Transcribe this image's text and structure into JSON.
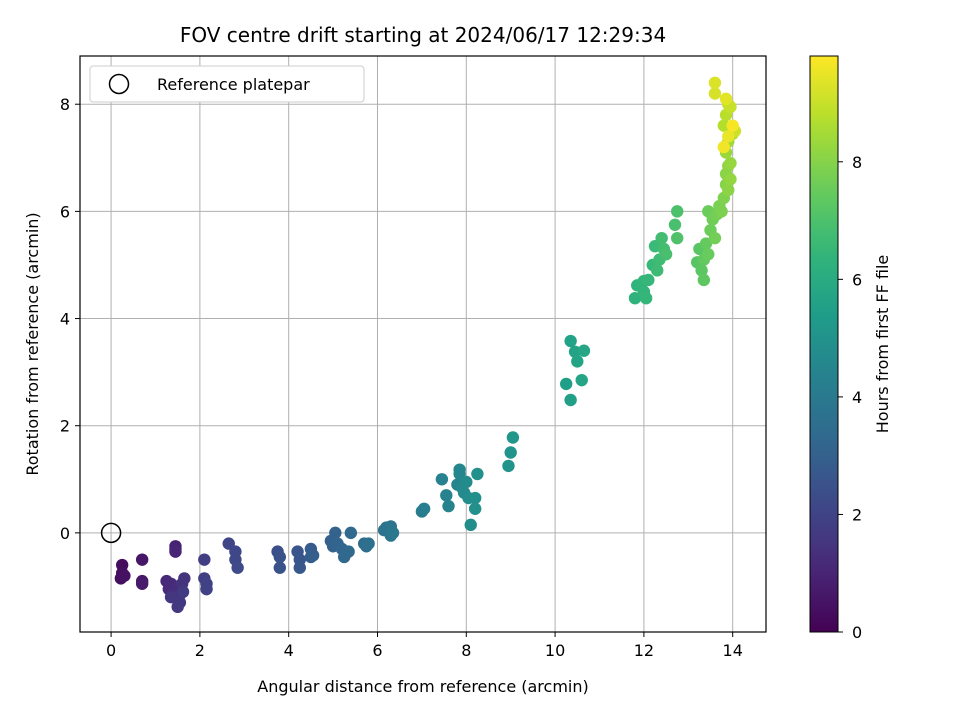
{
  "chart_data": {
    "type": "scatter",
    "title": "FOV centre drift starting at 2024/06/17 12:29:34",
    "xlabel": "Angular distance from reference (arcmin)",
    "ylabel": "Rotation from reference (arcmin)",
    "xlim": [
      -0.7,
      14.75
    ],
    "ylim": [
      -1.85,
      8.9
    ],
    "xticks": [
      0,
      2,
      4,
      6,
      8,
      10,
      12,
      14
    ],
    "yticks": [
      0,
      2,
      4,
      6,
      8
    ],
    "grid": true,
    "legend": {
      "position": "top-left",
      "entries": [
        "Reference platepar"
      ]
    },
    "reference_point": {
      "x": 0,
      "y": 0,
      "marker": "open-circle"
    },
    "colorbar": {
      "label": "Hours from first FF file",
      "colormap": "viridis",
      "range": [
        0,
        9.8
      ],
      "ticks": [
        0,
        2,
        4,
        6,
        8
      ]
    },
    "points": [
      {
        "x": 0.25,
        "y": -0.6,
        "c": 0.3
      },
      {
        "x": 0.25,
        "y": -0.75,
        "c": 0.35
      },
      {
        "x": 0.22,
        "y": -0.85,
        "c": 0.4
      },
      {
        "x": 0.3,
        "y": -0.8,
        "c": 0.45
      },
      {
        "x": 0.7,
        "y": -0.5,
        "c": 0.6
      },
      {
        "x": 0.7,
        "y": -0.9,
        "c": 0.65
      },
      {
        "x": 0.7,
        "y": -0.95,
        "c": 0.7
      },
      {
        "x": 1.45,
        "y": -0.25,
        "c": 0.9
      },
      {
        "x": 1.45,
        "y": -0.3,
        "c": 0.95
      },
      {
        "x": 1.45,
        "y": -0.35,
        "c": 1.0
      },
      {
        "x": 1.25,
        "y": -0.9,
        "c": 1.1
      },
      {
        "x": 1.35,
        "y": -0.95,
        "c": 1.15
      },
      {
        "x": 1.3,
        "y": -1.05,
        "c": 1.2
      },
      {
        "x": 1.4,
        "y": -1.1,
        "c": 1.25
      },
      {
        "x": 1.5,
        "y": -1.0,
        "c": 1.3
      },
      {
        "x": 1.55,
        "y": -1.15,
        "c": 1.35
      },
      {
        "x": 1.45,
        "y": -1.2,
        "c": 1.4
      },
      {
        "x": 1.6,
        "y": -0.95,
        "c": 1.45
      },
      {
        "x": 1.65,
        "y": -0.85,
        "c": 1.5
      },
      {
        "x": 1.35,
        "y": -1.2,
        "c": 1.55
      },
      {
        "x": 1.55,
        "y": -1.3,
        "c": 1.6
      },
      {
        "x": 1.5,
        "y": -1.38,
        "c": 1.65
      },
      {
        "x": 1.62,
        "y": -1.1,
        "c": 1.7
      },
      {
        "x": 2.1,
        "y": -0.5,
        "c": 1.8
      },
      {
        "x": 2.1,
        "y": -0.85,
        "c": 1.85
      },
      {
        "x": 2.15,
        "y": -0.95,
        "c": 1.9
      },
      {
        "x": 2.15,
        "y": -1.05,
        "c": 1.95
      },
      {
        "x": 2.65,
        "y": -0.2,
        "c": 2.05
      },
      {
        "x": 2.8,
        "y": -0.35,
        "c": 2.1
      },
      {
        "x": 2.8,
        "y": -0.5,
        "c": 2.15
      },
      {
        "x": 2.85,
        "y": -0.65,
        "c": 2.2
      },
      {
        "x": 3.75,
        "y": -0.35,
        "c": 2.4
      },
      {
        "x": 3.8,
        "y": -0.45,
        "c": 2.45
      },
      {
        "x": 3.8,
        "y": -0.65,
        "c": 2.5
      },
      {
        "x": 4.2,
        "y": -0.35,
        "c": 2.6
      },
      {
        "x": 4.25,
        "y": -0.5,
        "c": 2.65
      },
      {
        "x": 4.25,
        "y": -0.65,
        "c": 2.7
      },
      {
        "x": 4.5,
        "y": -0.3,
        "c": 2.8
      },
      {
        "x": 4.5,
        "y": -0.45,
        "c": 2.85
      },
      {
        "x": 4.55,
        "y": -0.42,
        "c": 2.9
      },
      {
        "x": 4.95,
        "y": -0.15,
        "c": 3.0
      },
      {
        "x": 5.0,
        "y": -0.25,
        "c": 3.05
      },
      {
        "x": 5.05,
        "y": 0.0,
        "c": 3.1
      },
      {
        "x": 5.1,
        "y": -0.2,
        "c": 3.15
      },
      {
        "x": 5.2,
        "y": -0.3,
        "c": 3.2
      },
      {
        "x": 5.25,
        "y": -0.45,
        "c": 3.25
      },
      {
        "x": 5.35,
        "y": -0.35,
        "c": 3.3
      },
      {
        "x": 5.4,
        "y": 0.0,
        "c": 3.35
      },
      {
        "x": 5.7,
        "y": -0.2,
        "c": 3.45
      },
      {
        "x": 5.75,
        "y": -0.25,
        "c": 3.5
      },
      {
        "x": 5.8,
        "y": -0.2,
        "c": 3.55
      },
      {
        "x": 6.15,
        "y": 0.05,
        "c": 3.7
      },
      {
        "x": 6.2,
        "y": 0.1,
        "c": 3.75
      },
      {
        "x": 6.3,
        "y": 0.12,
        "c": 3.8
      },
      {
        "x": 6.3,
        "y": -0.05,
        "c": 3.85
      },
      {
        "x": 6.35,
        "y": 0.0,
        "c": 3.9
      },
      {
        "x": 7.0,
        "y": 0.4,
        "c": 4.1
      },
      {
        "x": 7.05,
        "y": 0.45,
        "c": 4.15
      },
      {
        "x": 7.45,
        "y": 1.0,
        "c": 4.3
      },
      {
        "x": 7.55,
        "y": 0.7,
        "c": 4.35
      },
      {
        "x": 7.6,
        "y": 0.5,
        "c": 4.4
      },
      {
        "x": 7.8,
        "y": 0.9,
        "c": 4.45
      },
      {
        "x": 7.85,
        "y": 1.1,
        "c": 4.5
      },
      {
        "x": 7.85,
        "y": 1.18,
        "c": 4.55
      },
      {
        "x": 7.9,
        "y": 0.85,
        "c": 4.6
      },
      {
        "x": 7.95,
        "y": 0.75,
        "c": 4.65
      },
      {
        "x": 8.0,
        "y": 0.95,
        "c": 4.7
      },
      {
        "x": 8.05,
        "y": 0.65,
        "c": 4.75
      },
      {
        "x": 8.1,
        "y": 0.15,
        "c": 4.8
      },
      {
        "x": 8.2,
        "y": 0.65,
        "c": 4.85
      },
      {
        "x": 8.2,
        "y": 0.45,
        "c": 4.9
      },
      {
        "x": 8.25,
        "y": 1.1,
        "c": 4.95
      },
      {
        "x": 8.95,
        "y": 1.25,
        "c": 5.05
      },
      {
        "x": 9.0,
        "y": 1.5,
        "c": 5.1
      },
      {
        "x": 9.05,
        "y": 1.78,
        "c": 5.15
      },
      {
        "x": 10.25,
        "y": 2.78,
        "c": 5.5
      },
      {
        "x": 10.35,
        "y": 2.48,
        "c": 5.55
      },
      {
        "x": 10.35,
        "y": 3.58,
        "c": 5.6
      },
      {
        "x": 10.45,
        "y": 3.38,
        "c": 5.65
      },
      {
        "x": 10.5,
        "y": 3.2,
        "c": 5.7
      },
      {
        "x": 10.6,
        "y": 2.85,
        "c": 5.75
      },
      {
        "x": 10.65,
        "y": 3.4,
        "c": 5.8
      },
      {
        "x": 11.8,
        "y": 4.38,
        "c": 6.3
      },
      {
        "x": 11.85,
        "y": 4.62,
        "c": 6.35
      },
      {
        "x": 12.0,
        "y": 4.5,
        "c": 6.4
      },
      {
        "x": 12.0,
        "y": 4.7,
        "c": 6.45
      },
      {
        "x": 12.05,
        "y": 4.38,
        "c": 6.5
      },
      {
        "x": 12.1,
        "y": 4.72,
        "c": 6.55
      },
      {
        "x": 12.2,
        "y": 5.0,
        "c": 6.6
      },
      {
        "x": 12.25,
        "y": 5.35,
        "c": 6.65
      },
      {
        "x": 12.3,
        "y": 4.9,
        "c": 6.7
      },
      {
        "x": 12.35,
        "y": 5.1,
        "c": 6.75
      },
      {
        "x": 12.4,
        "y": 5.5,
        "c": 6.8
      },
      {
        "x": 12.45,
        "y": 5.3,
        "c": 6.85
      },
      {
        "x": 12.5,
        "y": 5.2,
        "c": 6.9
      },
      {
        "x": 12.7,
        "y": 5.75,
        "c": 6.95
      },
      {
        "x": 12.75,
        "y": 6.0,
        "c": 7.0
      },
      {
        "x": 12.75,
        "y": 5.5,
        "c": 7.05
      },
      {
        "x": 13.2,
        "y": 5.05,
        "c": 7.2
      },
      {
        "x": 13.25,
        "y": 5.3,
        "c": 7.25
      },
      {
        "x": 13.3,
        "y": 4.9,
        "c": 7.3
      },
      {
        "x": 13.35,
        "y": 4.72,
        "c": 7.35
      },
      {
        "x": 13.35,
        "y": 5.1,
        "c": 7.4
      },
      {
        "x": 13.4,
        "y": 5.4,
        "c": 7.45
      },
      {
        "x": 13.45,
        "y": 5.2,
        "c": 7.5
      },
      {
        "x": 13.45,
        "y": 6.0,
        "c": 7.55
      },
      {
        "x": 13.5,
        "y": 5.65,
        "c": 7.6
      },
      {
        "x": 13.55,
        "y": 5.85,
        "c": 7.65
      },
      {
        "x": 13.6,
        "y": 5.5,
        "c": 7.7
      },
      {
        "x": 13.65,
        "y": 5.95,
        "c": 7.75
      },
      {
        "x": 13.7,
        "y": 6.1,
        "c": 7.8
      },
      {
        "x": 13.75,
        "y": 6.0,
        "c": 7.85
      },
      {
        "x": 13.8,
        "y": 6.25,
        "c": 7.9
      },
      {
        "x": 13.85,
        "y": 6.5,
        "c": 8.0
      },
      {
        "x": 13.85,
        "y": 6.7,
        "c": 8.05
      },
      {
        "x": 13.9,
        "y": 6.4,
        "c": 8.1
      },
      {
        "x": 13.9,
        "y": 6.85,
        "c": 8.15
      },
      {
        "x": 13.95,
        "y": 6.6,
        "c": 8.2
      },
      {
        "x": 13.95,
        "y": 6.9,
        "c": 8.25
      },
      {
        "x": 13.85,
        "y": 7.1,
        "c": 8.3
      },
      {
        "x": 13.9,
        "y": 7.3,
        "c": 8.4
      },
      {
        "x": 13.95,
        "y": 7.5,
        "c": 8.5
      },
      {
        "x": 14.0,
        "y": 7.45,
        "c": 8.6
      },
      {
        "x": 13.8,
        "y": 7.6,
        "c": 8.7
      },
      {
        "x": 13.85,
        "y": 7.8,
        "c": 8.8
      },
      {
        "x": 13.9,
        "y": 8.0,
        "c": 8.9
      },
      {
        "x": 13.95,
        "y": 7.95,
        "c": 9.0
      },
      {
        "x": 14.05,
        "y": 7.5,
        "c": 9.1
      },
      {
        "x": 13.6,
        "y": 8.2,
        "c": 9.2
      },
      {
        "x": 13.6,
        "y": 8.4,
        "c": 9.3
      },
      {
        "x": 13.85,
        "y": 8.1,
        "c": 9.4
      },
      {
        "x": 13.9,
        "y": 7.4,
        "c": 9.5
      },
      {
        "x": 13.8,
        "y": 7.2,
        "c": 9.6
      },
      {
        "x": 14.0,
        "y": 7.6,
        "c": 9.7
      }
    ]
  }
}
